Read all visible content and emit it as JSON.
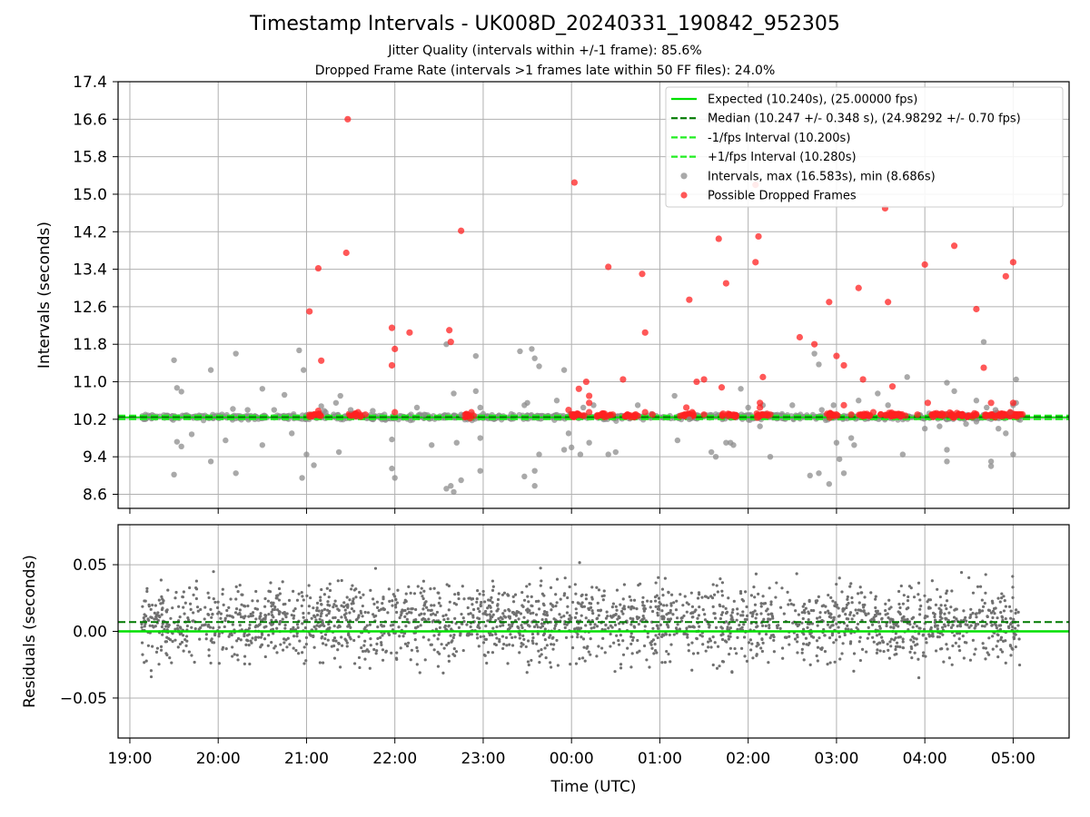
{
  "figure": {
    "title": "Timestamp Intervals - UK008D_20240331_190842_952305",
    "subtitle_1": "Jitter Quality (intervals within +/-1 frame): 85.6%",
    "subtitle_2": "Dropped Frame Rate (intervals >1 frames late within 50 FF files): 24.0%"
  },
  "colors": {
    "expected": "#00e000",
    "median": "#007a00",
    "fps_interval": "#22ee22",
    "intervals": "#8c8c8c",
    "dropped": "#ff2020",
    "residuals": "#707070",
    "grid": "#b0b0b0"
  },
  "chart_data": [
    {
      "type": "scatter",
      "panel": "intervals",
      "xlabel": "",
      "ylabel": "Intervals (seconds)",
      "xlim": [
        "18:52",
        "05:38"
      ],
      "ylim": [
        8.3,
        17.4
      ],
      "yticks": [
        "17.4",
        "16.6",
        "15.8",
        "15.0",
        "14.2",
        "13.4",
        "12.6",
        "11.8",
        "11.0",
        "10.2",
        "9.4",
        "8.6"
      ],
      "grid": true,
      "legend_position": "top-right",
      "legend": [
        {
          "label": "Expected (10.240s), (25.00000 fps)",
          "style": "solid-line",
          "color": "#00e000"
        },
        {
          "label": "Median (10.247 +/- 0.348 s), (24.98292 +/- 0.70 fps)",
          "style": "dashed-line",
          "color": "#007a00"
        },
        {
          "label": "-1/fps Interval (10.200s)",
          "style": "dashed-line",
          "color": "#22ee22"
        },
        {
          "label": "+1/fps Interval (10.280s)",
          "style": "dashed-line",
          "color": "#22ee22"
        },
        {
          "label": "Intervals, max (16.583s), min (8.686s)",
          "style": "marker",
          "color": "#8c8c8c"
        },
        {
          "label": "Possible Dropped Frames",
          "style": "marker",
          "color": "#ff2020"
        }
      ],
      "hlines": [
        {
          "y": 10.24,
          "style": "solid"
        },
        {
          "y": 10.247,
          "style": "dashed"
        },
        {
          "y": 10.2,
          "style": "dashed"
        },
        {
          "y": 10.28,
          "style": "dashed"
        }
      ],
      "series": [
        {
          "name": "Intervals, max (16.583s), min (8.686s)",
          "points": [
            [
              "19:30",
              11.46
            ],
            [
              "19:32",
              10.87
            ],
            [
              "19:35",
              10.79
            ],
            [
              "19:32",
              9.72
            ],
            [
              "19:30",
              9.02
            ],
            [
              "19:35",
              9.62
            ],
            [
              "19:42",
              9.88
            ],
            [
              "19:55",
              11.25
            ],
            [
              "19:55",
              9.3
            ],
            [
              "20:05",
              9.75
            ],
            [
              "20:10",
              10.42
            ],
            [
              "20:12",
              11.6
            ],
            [
              "20:12",
              9.05
            ],
            [
              "20:20",
              10.4
            ],
            [
              "20:30",
              10.85
            ],
            [
              "20:30",
              9.65
            ],
            [
              "20:38",
              10.4
            ],
            [
              "20:45",
              10.72
            ],
            [
              "20:50",
              9.9
            ],
            [
              "21:12",
              10.38
            ],
            [
              "21:10",
              10.48
            ],
            [
              "21:05",
              9.22
            ],
            [
              "21:13",
              10.35
            ],
            [
              "21:20",
              10.55
            ],
            [
              "21:22",
              9.5
            ],
            [
              "20:55",
              11.67
            ],
            [
              "20:58",
              11.25
            ],
            [
              "20:57",
              8.95
            ],
            [
              "21:00",
              9.45
            ],
            [
              "21:23",
              10.7
            ],
            [
              "21:30",
              10.4
            ],
            [
              "21:45",
              10.38
            ],
            [
              "21:58",
              9.15
            ],
            [
              "21:58",
              9.77
            ],
            [
              "22:00",
              8.95
            ],
            [
              "22:15",
              10.45
            ],
            [
              "22:20",
              10.3
            ],
            [
              "22:25",
              9.65
            ],
            [
              "22:35",
              11.8
            ],
            [
              "22:40",
              10.75
            ],
            [
              "22:42",
              9.7
            ],
            [
              "22:45",
              10.3
            ],
            [
              "22:35",
              8.72
            ],
            [
              "22:38",
              8.78
            ],
            [
              "22:40",
              8.65
            ],
            [
              "22:45",
              8.9
            ],
            [
              "22:58",
              10.45
            ],
            [
              "22:55",
              11.55
            ],
            [
              "22:58",
              9.8
            ],
            [
              "22:58",
              9.1
            ],
            [
              "22:55",
              10.8
            ],
            [
              "23:28",
              10.5
            ],
            [
              "23:30",
              10.55
            ],
            [
              "23:25",
              11.65
            ],
            [
              "23:33",
              11.7
            ],
            [
              "23:35",
              11.5
            ],
            [
              "23:38",
              11.33
            ],
            [
              "23:38",
              9.45
            ],
            [
              "23:28",
              8.98
            ],
            [
              "23:35",
              9.1
            ],
            [
              "23:35",
              8.78
            ],
            [
              "23:50",
              10.6
            ],
            [
              "23:55",
              11.25
            ],
            [
              "23:55",
              9.55
            ],
            [
              "23:58",
              9.9
            ],
            [
              "00:00",
              9.6
            ],
            [
              "00:06",
              9.45
            ],
            [
              "00:08",
              10.45
            ],
            [
              "00:12",
              9.7
            ],
            [
              "00:15",
              10.5
            ],
            [
              "00:25",
              9.45
            ],
            [
              "00:30",
              9.5
            ],
            [
              "00:45",
              10.5
            ],
            [
              "01:10",
              10.7
            ],
            [
              "01:12",
              9.75
            ],
            [
              "01:20",
              10.2
            ],
            [
              "01:35",
              9.5
            ],
            [
              "01:38",
              9.4
            ],
            [
              "01:45",
              9.7
            ],
            [
              "01:48",
              9.7
            ],
            [
              "01:50",
              9.65
            ],
            [
              "01:55",
              10.85
            ],
            [
              "02:00",
              10.45
            ],
            [
              "02:08",
              10.05
            ],
            [
              "02:10",
              10.5
            ],
            [
              "02:15",
              9.4
            ],
            [
              "02:30",
              10.5
            ],
            [
              "02:42",
              9.0
            ],
            [
              "02:48",
              9.05
            ],
            [
              "02:45",
              11.6
            ],
            [
              "02:48",
              11.37
            ],
            [
              "02:55",
              8.82
            ],
            [
              "02:50",
              10.4
            ],
            [
              "02:58",
              10.5
            ],
            [
              "03:00",
              9.7
            ],
            [
              "03:02",
              9.35
            ],
            [
              "03:05",
              9.05
            ],
            [
              "03:10",
              9.8
            ],
            [
              "03:12",
              9.65
            ],
            [
              "03:15",
              10.6
            ],
            [
              "03:28",
              10.75
            ],
            [
              "03:35",
              10.5
            ],
            [
              "03:48",
              11.1
            ],
            [
              "03:45",
              9.45
            ],
            [
              "04:00",
              10.0
            ],
            [
              "04:10",
              10.05
            ],
            [
              "04:15",
              10.98
            ],
            [
              "04:15",
              9.55
            ],
            [
              "04:15",
              9.3
            ],
            [
              "04:20",
              10.8
            ],
            [
              "04:28",
              10.1
            ],
            [
              "04:35",
              10.6
            ],
            [
              "04:35",
              10.15
            ],
            [
              "04:40",
              11.85
            ],
            [
              "04:45",
              9.3
            ],
            [
              "04:45",
              9.2
            ],
            [
              "04:50",
              10.0
            ],
            [
              "04:55",
              9.9
            ],
            [
              "04:58",
              10.35
            ],
            [
              "05:00",
              10.5
            ],
            [
              "05:00",
              9.45
            ],
            [
              "05:02",
              11.05
            ],
            [
              "05:02",
              10.55
            ],
            [
              "04:48",
              10.4
            ],
            [
              "04:42",
              10.45
            ]
          ]
        },
        {
          "name": "Possible Dropped Frames",
          "points": [
            [
              "21:28",
              16.6
            ],
            [
              "21:27",
              13.75
            ],
            [
              "21:08",
              13.42
            ],
            [
              "21:02",
              12.5
            ],
            [
              "21:10",
              11.45
            ],
            [
              "21:08",
              10.38
            ],
            [
              "21:05",
              10.3
            ],
            [
              "21:35",
              10.35
            ],
            [
              "21:40",
              10.3
            ],
            [
              "21:58",
              12.15
            ],
            [
              "21:58",
              11.35
            ],
            [
              "22:00",
              11.7
            ],
            [
              "22:00",
              10.35
            ],
            [
              "22:10",
              12.05
            ],
            [
              "22:37",
              12.1
            ],
            [
              "22:38",
              11.85
            ],
            [
              "22:45",
              14.22
            ],
            [
              "22:48",
              10.3
            ],
            [
              "22:52",
              10.35
            ],
            [
              "23:58",
              10.4
            ],
            [
              "00:02",
              15.25
            ],
            [
              "00:05",
              10.85
            ],
            [
              "00:10",
              11.0
            ],
            [
              "00:12",
              10.7
            ],
            [
              "00:12",
              10.55
            ],
            [
              "00:12",
              10.35
            ],
            [
              "00:28",
              10.3
            ],
            [
              "00:25",
              13.45
            ],
            [
              "00:35",
              11.05
            ],
            [
              "00:48",
              13.3
            ],
            [
              "00:50",
              12.05
            ],
            [
              "00:50",
              10.35
            ],
            [
              "00:40",
              10.28
            ],
            [
              "00:55",
              10.3
            ],
            [
              "01:20",
              12.75
            ],
            [
              "01:25",
              11.0
            ],
            [
              "01:30",
              11.05
            ],
            [
              "01:18",
              10.45
            ],
            [
              "01:22",
              10.35
            ],
            [
              "01:30",
              10.3
            ],
            [
              "01:40",
              14.05
            ],
            [
              "01:42",
              10.88
            ],
            [
              "01:45",
              13.1
            ],
            [
              "01:50",
              10.3
            ],
            [
              "02:05",
              15.2
            ],
            [
              "02:07",
              14.1
            ],
            [
              "02:05",
              13.55
            ],
            [
              "02:08",
              10.55
            ],
            [
              "02:08",
              10.45
            ],
            [
              "02:10",
              11.1
            ],
            [
              "02:15",
              10.3
            ],
            [
              "02:35",
              11.95
            ],
            [
              "02:45",
              11.8
            ],
            [
              "02:55",
              12.7
            ],
            [
              "03:00",
              11.55
            ],
            [
              "03:05",
              11.35
            ],
            [
              "03:05",
              10.5
            ],
            [
              "03:10",
              10.3
            ],
            [
              "03:15",
              13.0
            ],
            [
              "03:18",
              11.05
            ],
            [
              "03:25",
              10.35
            ],
            [
              "03:30",
              10.3
            ],
            [
              "03:33",
              14.7
            ],
            [
              "03:35",
              12.7
            ],
            [
              "03:38",
              10.9
            ],
            [
              "03:40",
              10.3
            ],
            [
              "03:55",
              10.3
            ],
            [
              "04:00",
              13.5
            ],
            [
              "04:02",
              10.55
            ],
            [
              "04:05",
              10.3
            ],
            [
              "04:20",
              13.9
            ],
            [
              "04:25",
              10.3
            ],
            [
              "04:35",
              12.55
            ],
            [
              "04:40",
              11.3
            ],
            [
              "04:45",
              10.55
            ],
            [
              "04:55",
              13.25
            ],
            [
              "05:00",
              13.55
            ],
            [
              "05:00",
              10.55
            ],
            [
              "04:58",
              10.35
            ],
            [
              "05:05",
              10.3
            ],
            [
              "04:45",
              10.3
            ],
            [
              "04:15",
              10.3
            ]
          ]
        }
      ]
    },
    {
      "type": "scatter",
      "panel": "residuals",
      "xlabel": "Time (UTC)",
      "ylabel": "Residuals (seconds)",
      "xlim": [
        "18:52",
        "05:38"
      ],
      "ylim": [
        -0.08,
        0.08
      ],
      "yticks": [
        "0.05",
        "0.00",
        "−0.05"
      ],
      "xticks": [
        "19:00",
        "20:00",
        "21:00",
        "22:00",
        "23:00",
        "00:00",
        "01:00",
        "02:00",
        "03:00",
        "04:00",
        "05:00"
      ],
      "grid": true,
      "hlines": [
        {
          "y": 0.0,
          "style": "solid"
        },
        {
          "y": 0.007,
          "style": "dashed"
        }
      ],
      "series": [
        {
          "name": "",
          "x_range": [
            "19:08",
            "05:05"
          ],
          "count": 2300,
          "mean": 0.007,
          "std": 0.02,
          "min": -0.062,
          "max": 0.077
        }
      ]
    }
  ]
}
